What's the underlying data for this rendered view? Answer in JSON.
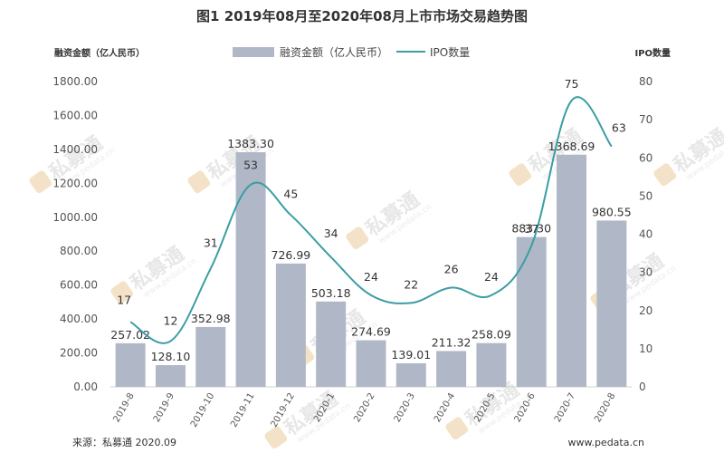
{
  "title": "图1  2019年08月至2020年08月上市市场交易趋势图",
  "source": "来源：私募通 2020.09",
  "website": "www.pedata.cn",
  "watermark": {
    "text": "私募通",
    "url": "www.pedata.cn"
  },
  "colors": {
    "bar": "#b0b8c8",
    "line": "#3a9ea5",
    "grid": "#e3e3e3"
  },
  "chart_data": {
    "type": "bar+line",
    "categories": [
      "2019-8",
      "2019-9",
      "2019-10",
      "2019-11",
      "2019-12",
      "2020-1",
      "2020-2",
      "2020-3",
      "2020-4",
      "2020-5",
      "2020-6",
      "2020-7",
      "2020-8"
    ],
    "series": [
      {
        "name": "融资金额（亿人民币）",
        "type": "bar",
        "axis": "left",
        "values": [
          257.02,
          128.1,
          352.98,
          1383.3,
          726.99,
          503.18,
          274.69,
          139.01,
          211.32,
          258.09,
          883.3,
          1368.69,
          980.55
        ],
        "labels": [
          "257.02",
          "128.10",
          "352.98",
          "1383.30",
          "726.99",
          "503.18",
          "274.69",
          "139.01",
          "211.32",
          "258.09",
          "883.30",
          "1368.69",
          "980.55"
        ]
      },
      {
        "name": "IPO数量",
        "type": "line",
        "axis": "right",
        "values": [
          17,
          12,
          31,
          53,
          45,
          34,
          24,
          22,
          26,
          24,
          37,
          75,
          63
        ]
      }
    ],
    "ylabel_left": "融资金额（亿人民币）",
    "ylabel_right": "IPO数量",
    "ylim_left": [
      0,
      1800
    ],
    "ylim_right": [
      0,
      80
    ],
    "yticks_left": [
      "0.00",
      "200.00",
      "400.00",
      "600.00",
      "800.00",
      "1000.00",
      "1200.00",
      "1400.00",
      "1600.00",
      "1800.00"
    ],
    "yticks_right": [
      "0",
      "10",
      "20",
      "30",
      "40",
      "50",
      "60",
      "70",
      "80"
    ],
    "legend_position": "top",
    "grid": false
  }
}
